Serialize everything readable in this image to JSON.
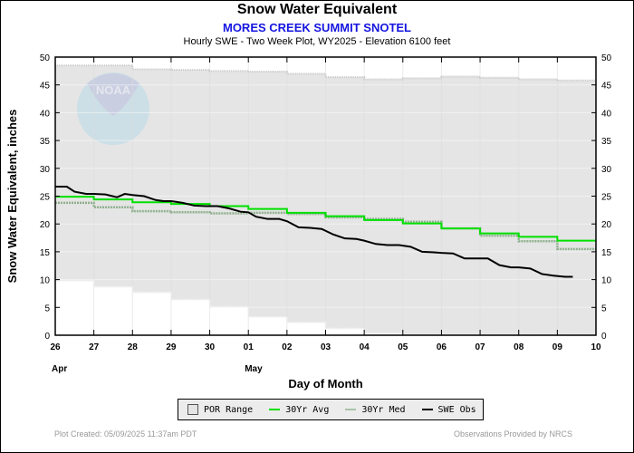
{
  "chart_data": {
    "type": "line",
    "title": "Snow Water Equivalent",
    "subtitle": "MORES CREEK SUMMIT SNOTEL",
    "subtitle2": "Hourly SWE - Two Week Plot, WY2025 -  Elevation 6100 feet",
    "xlabel": "Day of Month",
    "ylabel": "Snow Water Equivalent, inches",
    "ylim": [
      0,
      50
    ],
    "yticks": [
      0,
      5,
      10,
      15,
      20,
      25,
      30,
      35,
      40,
      45,
      50
    ],
    "xlim": [
      0,
      14
    ],
    "xtick_labels": [
      "26",
      "27",
      "28",
      "29",
      "30",
      "01",
      "02",
      "03",
      "04",
      "05",
      "06",
      "07",
      "08",
      "09",
      "10"
    ],
    "month_labels": [
      {
        "day_index": 0,
        "label": "Apr"
      },
      {
        "day_index": 5,
        "label": "May"
      }
    ],
    "grid": true,
    "legend_position": "bottom",
    "colors": {
      "por_range": "#e5e5e5",
      "avg": "#00e000",
      "med": "#8fb08f",
      "obs": "#000000"
    },
    "series": [
      {
        "name": "POR Range (max)",
        "type": "step",
        "x": [
          0,
          1,
          2,
          3,
          4,
          5,
          6,
          7,
          8,
          9,
          10,
          11,
          12,
          13,
          14
        ],
        "values": [
          48.5,
          48.5,
          47.8,
          47.7,
          47.5,
          47.4,
          47.0,
          46.4,
          46.0,
          46.2,
          46.5,
          46.3,
          46.0,
          45.8,
          45.8
        ]
      },
      {
        "name": "POR Range (min)",
        "type": "step",
        "x": [
          0,
          1,
          2,
          3,
          4,
          5,
          6,
          7,
          8,
          9,
          10,
          11,
          12,
          13,
          14
        ],
        "values": [
          9.8,
          8.7,
          7.7,
          6.4,
          5.1,
          3.3,
          2.3,
          1.2,
          0.3,
          0,
          0,
          0,
          0,
          0,
          0
        ]
      },
      {
        "name": "30Yr Avg",
        "type": "step",
        "x": [
          0,
          1,
          2,
          3,
          4,
          5,
          6,
          7,
          8,
          9,
          10,
          11,
          12,
          13,
          14
        ],
        "values": [
          24.9,
          24.4,
          23.9,
          23.6,
          23.2,
          22.7,
          22.0,
          21.4,
          20.7,
          20.1,
          19.2,
          18.3,
          17.7,
          17.0,
          17.0
        ]
      },
      {
        "name": "30Yr Med",
        "type": "step",
        "x": [
          0,
          1,
          2,
          3,
          4,
          5,
          6,
          7,
          8,
          9,
          10,
          11,
          12,
          13,
          14
        ],
        "values": [
          23.8,
          23.0,
          22.3,
          22.1,
          21.9,
          22.0,
          21.8,
          21.2,
          20.9,
          20.4,
          19.2,
          17.9,
          16.9,
          15.5,
          15.5
        ]
      },
      {
        "name": "SWE Obs",
        "type": "line",
        "x": [
          0,
          0.3,
          0.5,
          0.8,
          1.0,
          1.3,
          1.6,
          1.8,
          2.0,
          2.3,
          2.6,
          2.8,
          3.0,
          3.3,
          3.6,
          3.9,
          4.2,
          4.5,
          4.8,
          5.0,
          5.2,
          5.5,
          5.8,
          6.0,
          6.3,
          6.6,
          6.9,
          7.2,
          7.5,
          7.8,
          8.0,
          8.3,
          8.6,
          8.9,
          9.2,
          9.5,
          9.8,
          10.0,
          10.3,
          10.6,
          10.9,
          11.2,
          11.5,
          11.8,
          12.0,
          12.3,
          12.6,
          12.9,
          13.2,
          13.4
        ],
        "values": [
          26.7,
          26.7,
          25.8,
          25.4,
          25.4,
          25.3,
          24.8,
          25.4,
          25.2,
          25.0,
          24.3,
          24.1,
          24.1,
          23.8,
          23.3,
          23.2,
          23.2,
          22.8,
          22.2,
          22.1,
          21.3,
          20.9,
          20.9,
          20.5,
          19.4,
          19.3,
          19.1,
          18.1,
          17.4,
          17.3,
          17.0,
          16.4,
          16.2,
          16.2,
          15.9,
          15.0,
          14.9,
          14.8,
          14.7,
          13.8,
          13.8,
          13.8,
          12.6,
          12.2,
          12.2,
          12.0,
          11.0,
          10.7,
          10.5,
          10.5
        ]
      }
    ],
    "legend": [
      "POR Range",
      "30Yr Avg",
      "30Yr Med",
      "SWE Obs"
    ]
  },
  "watermark": "NOAA",
  "footer": {
    "left": "Plot Created: 05/09/2025 11:37am PDT",
    "right": "Observations Provided by NRCS"
  }
}
